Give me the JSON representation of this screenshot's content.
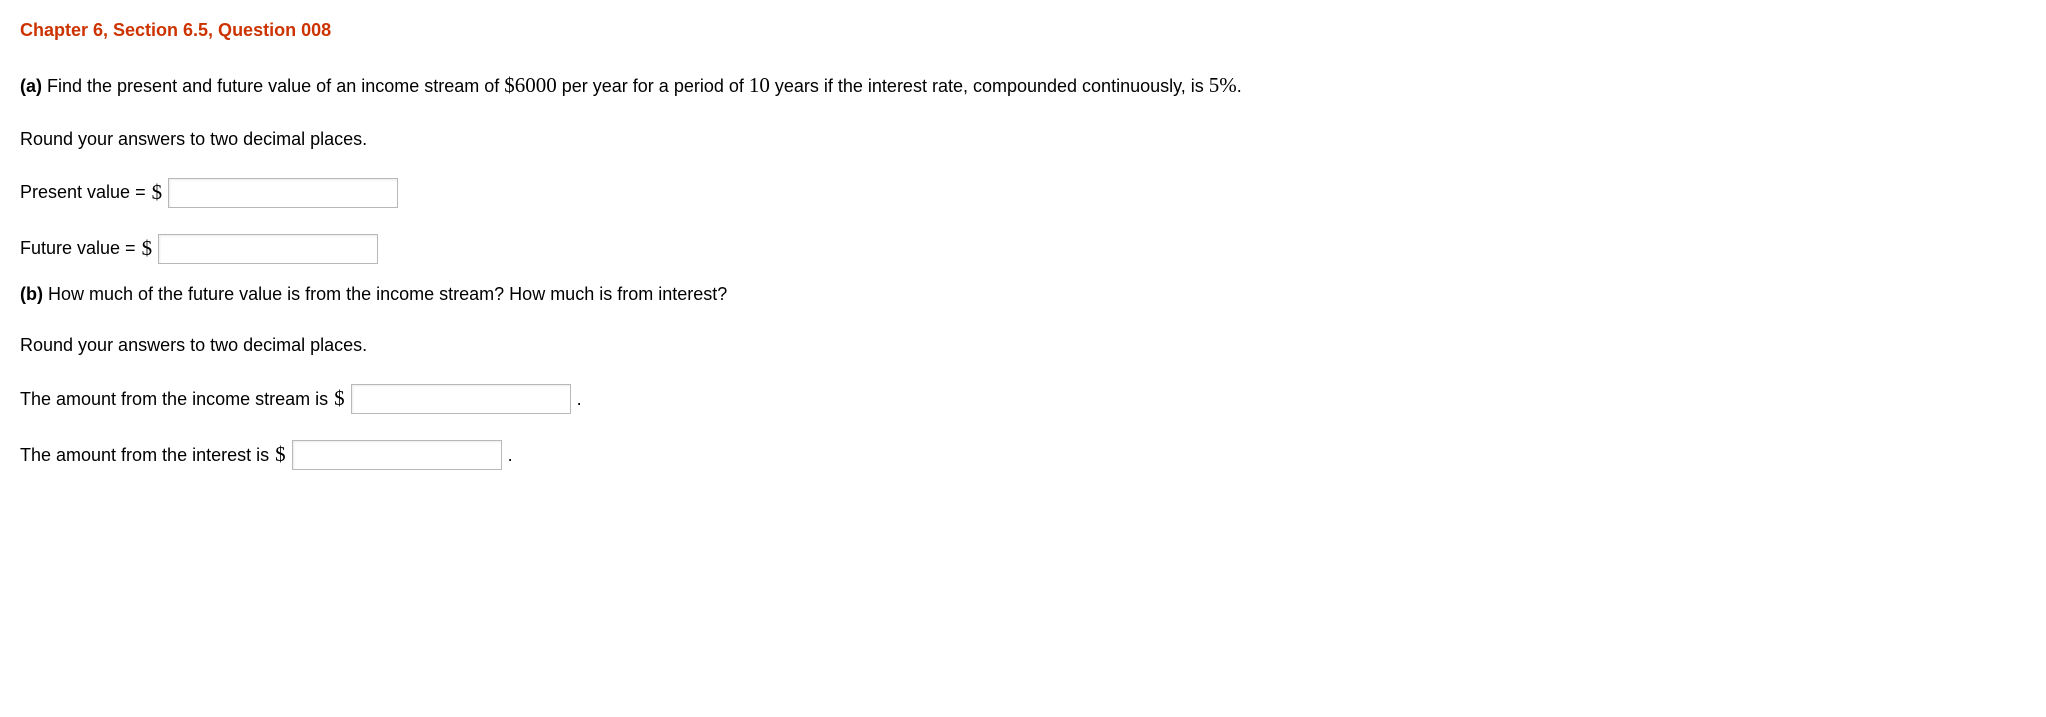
{
  "header": "Chapter 6, Section 6.5, Question 008",
  "partA": {
    "label": "(a)",
    "text_before": " Find the present and future value of an income stream of ",
    "amount": "$6000",
    "text_mid1": " per year for a period of ",
    "years": "10",
    "text_mid2": " years if the interest rate, compounded continuously, is ",
    "rate": "5%",
    "text_after": ".",
    "round_instruction": "Round your answers to two decimal places.",
    "present_value_label": "Present value = ",
    "present_value_symbol": "$",
    "future_value_label": "Future value = ",
    "future_value_symbol": "$"
  },
  "partB": {
    "label": "(b)",
    "question": " How much of the future value is from the income stream? How much is from interest?",
    "round_instruction": "Round your answers to two decimal places.",
    "income_stream_label_before": "The amount from the income stream is ",
    "income_stream_symbol": "$",
    "income_stream_after": " .",
    "interest_label_before": "The amount from the interest is ",
    "interest_symbol": "$",
    "interest_after": " ."
  }
}
